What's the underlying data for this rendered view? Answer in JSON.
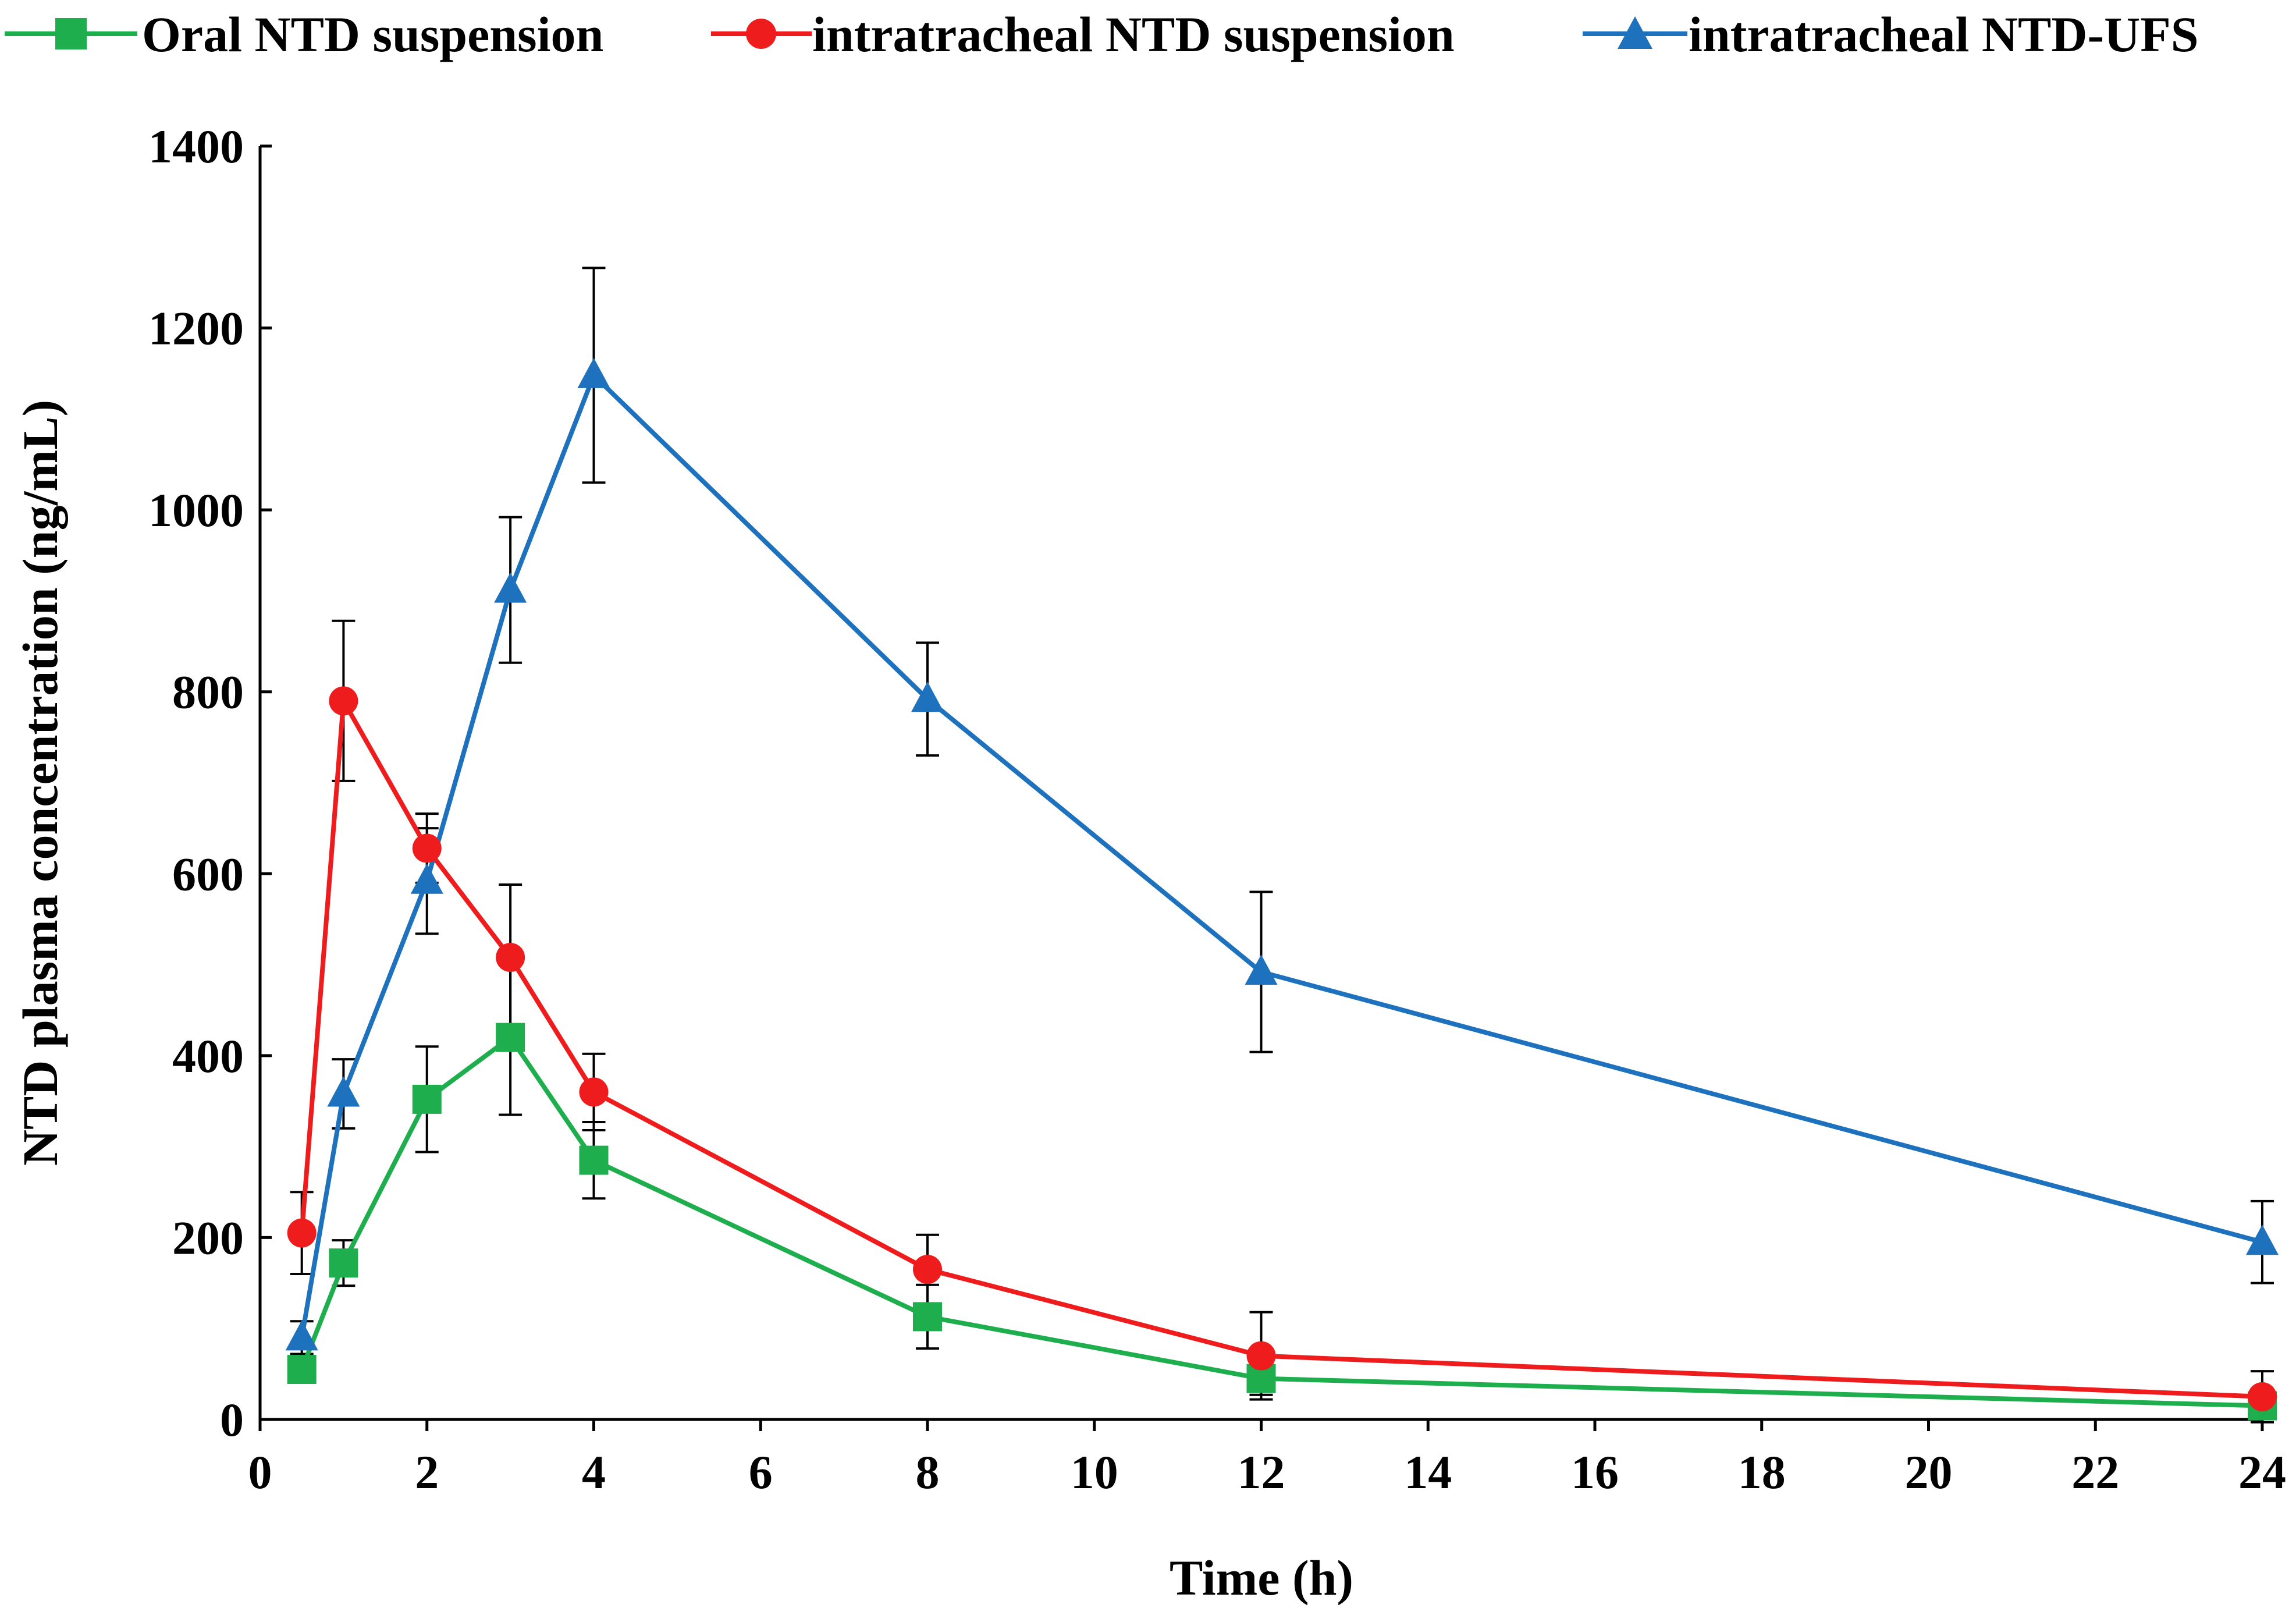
{
  "chart_data": {
    "type": "line",
    "title": "",
    "xlabel": "Time (h)",
    "ylabel": "NTD plasma concentration  (ng/mL)",
    "xlim": [
      0,
      24
    ],
    "ylim": [
      0,
      1400
    ],
    "xticks": [
      0,
      2,
      4,
      6,
      8,
      10,
      12,
      14,
      16,
      18,
      20,
      22,
      24
    ],
    "yticks": [
      0,
      200,
      400,
      600,
      800,
      1000,
      1200,
      1400
    ],
    "grid": false,
    "legend_position": "top",
    "series": [
      {
        "name": "Oral NTD suspension",
        "color": "#1fae4e",
        "marker": "square",
        "x": [
          0.5,
          1,
          2,
          3,
          4,
          8,
          12,
          24
        ],
        "y": [
          55,
          172,
          352,
          420,
          285,
          113,
          45,
          15
        ],
        "error": [
          0,
          25,
          58,
          85,
          42,
          35,
          18,
          8
        ]
      },
      {
        "name": "intratracheal NTD suspension",
        "color": "#ee1c1c",
        "marker": "circle",
        "x": [
          0.5,
          1,
          2,
          3,
          4,
          8,
          12,
          24
        ],
        "y": [
          205,
          790,
          628,
          508,
          360,
          165,
          70,
          25
        ],
        "error": [
          45,
          88,
          38,
          80,
          42,
          38,
          48,
          28
        ]
      },
      {
        "name": "intratracheal NTD-UFS",
        "color": "#1e72bd",
        "marker": "triangle",
        "x": [
          0.5,
          1,
          2,
          3,
          4,
          8,
          12,
          24
        ],
        "y": [
          90,
          358,
          592,
          912,
          1148,
          792,
          492,
          195
        ],
        "error": [
          18,
          38,
          58,
          80,
          118,
          62,
          88,
          45
        ]
      }
    ]
  }
}
